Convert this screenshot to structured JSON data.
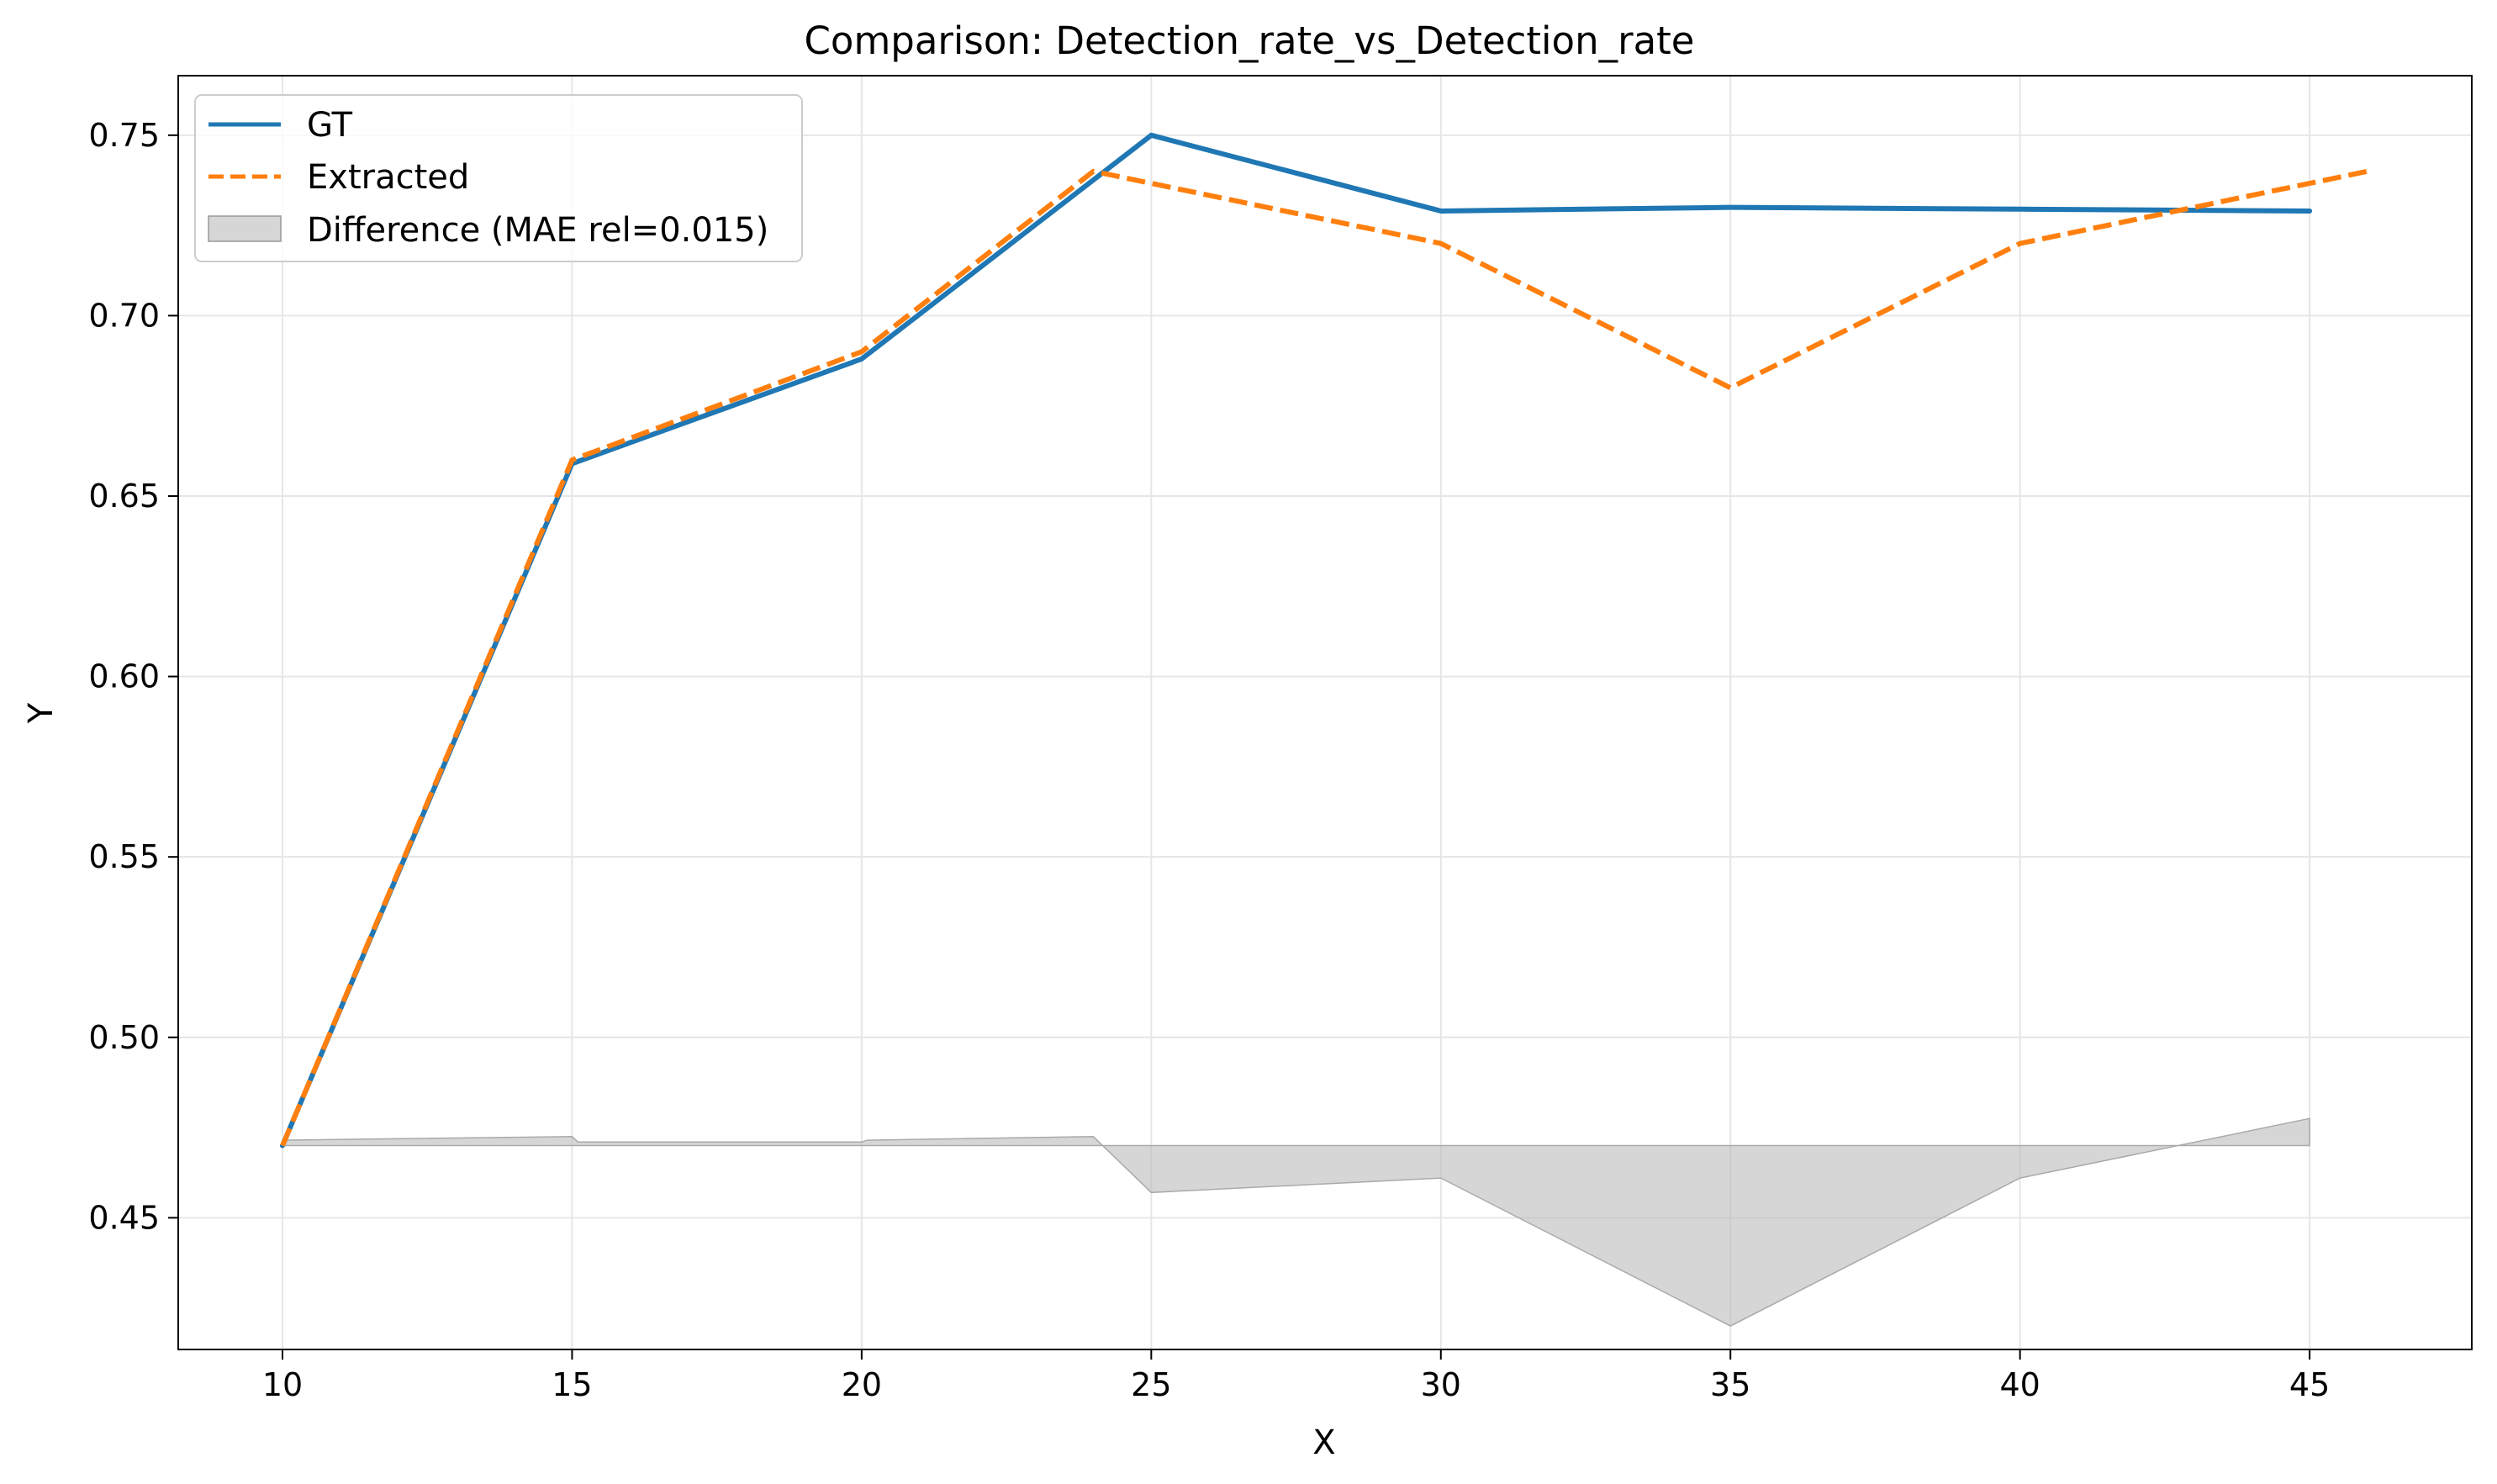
{
  "chart_data": {
    "type": "line",
    "title": "Comparison: Detection_rate_vs_Detection_rate",
    "xlabel": "X",
    "ylabel": "Y",
    "xlim": [
      8.2,
      47.8
    ],
    "ylim": [
      0.4135,
      0.7665
    ],
    "xticks": [
      10,
      15,
      20,
      25,
      30,
      35,
      40,
      45
    ],
    "yticks": [
      0.45,
      0.5,
      0.55,
      0.6,
      0.65,
      0.7,
      0.75
    ],
    "grid": true,
    "legend_position": "upper-left",
    "series": [
      {
        "name": "GT",
        "style": "solid",
        "color": "#1f77b4",
        "x": [
          10,
          15,
          20,
          25,
          30,
          35,
          40,
          45
        ],
        "y": [
          0.47,
          0.659,
          0.688,
          0.75,
          0.729,
          0.73,
          0.7295,
          0.729
        ]
      },
      {
        "name": "Extracted",
        "style": "dashed",
        "color": "#ff7f0e",
        "x": [
          10,
          15,
          20,
          24,
          30,
          35,
          40,
          46
        ],
        "y": [
          0.47,
          0.66,
          0.69,
          0.74,
          0.72,
          0.68,
          0.72,
          0.74
        ]
      }
    ],
    "difference": {
      "name": "Difference (MAE rel=0.015)",
      "color": "#bbbbbb",
      "baseline": 0.47,
      "x": [
        10,
        15,
        15.1,
        20,
        20.1,
        24,
        25,
        30,
        35,
        40,
        45
      ],
      "y": [
        0.4715,
        0.4725,
        0.471,
        0.471,
        0.4715,
        0.4725,
        0.457,
        0.461,
        0.42,
        0.461,
        0.4775
      ]
    }
  }
}
